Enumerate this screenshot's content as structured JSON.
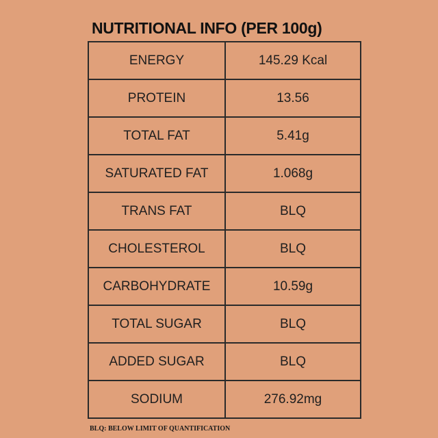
{
  "title": "NUTRITIONAL INFO (PER 100g)",
  "rows": [
    {
      "name": "ENERGY",
      "value": "145.29 Kcal"
    },
    {
      "name": "PROTEIN",
      "value": "13.56"
    },
    {
      "name": "TOTAL FAT",
      "value": "5.41g"
    },
    {
      "name": "SATURATED FAT",
      "value": "1.068g"
    },
    {
      "name": "TRANS FAT",
      "value": "BLQ"
    },
    {
      "name": "CHOLESTEROL",
      "value": "BLQ"
    },
    {
      "name": "CARBOHYDRATE",
      "value": "10.59g"
    },
    {
      "name": "TOTAL SUGAR",
      "value": "BLQ"
    },
    {
      "name": "ADDED SUGAR",
      "value": "BLQ"
    },
    {
      "name": "SODIUM",
      "value": "276.92mg"
    }
  ],
  "footnote": "BLQ: BELOW LIMIT OF QUANTIFICATION",
  "colors": {
    "background": "#e0a07a",
    "border": "#2a2a2a",
    "text": "#1a1a1a"
  }
}
